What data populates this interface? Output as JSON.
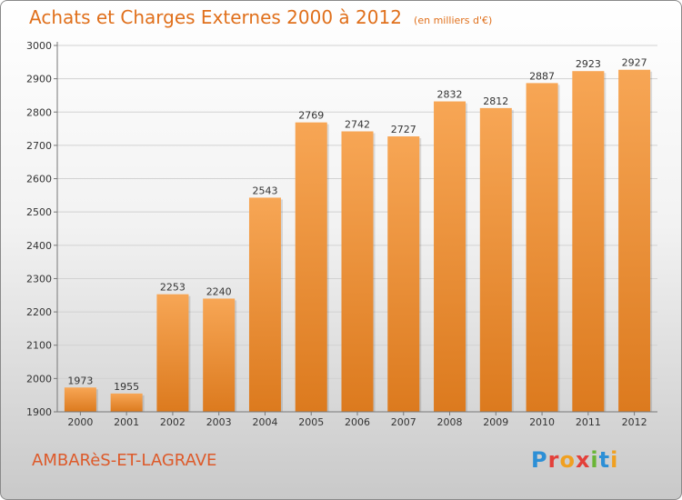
{
  "header": {
    "title": "Achats et Charges Externes 2000 à 2012",
    "unit": "(en milliers d'€)"
  },
  "footer": {
    "place": "AMBARèS-ET-LAGRAVE",
    "logo_text": "Proxiti"
  },
  "colors": {
    "bar_top": "#f7a655",
    "bar_bottom": "#dc7a1e",
    "title": "#e0701c",
    "place": "#dd5a2a"
  },
  "chart_data": {
    "type": "bar",
    "title": "Achats et Charges Externes 2000 à 2012",
    "subtitle": "(en milliers d'€)",
    "categories": [
      "2000",
      "2001",
      "2002",
      "2003",
      "2004",
      "2005",
      "2006",
      "2007",
      "2008",
      "2009",
      "2010",
      "2011",
      "2012"
    ],
    "values": [
      1973,
      1955,
      2253,
      2240,
      2543,
      2769,
      2742,
      2727,
      2832,
      2812,
      2887,
      2923,
      2927
    ],
    "ylim": [
      1900,
      3000
    ],
    "yticks": [
      1900,
      2000,
      2100,
      2200,
      2300,
      2400,
      2500,
      2600,
      2700,
      2800,
      2900,
      3000
    ],
    "grid": true,
    "data_labels": true
  }
}
